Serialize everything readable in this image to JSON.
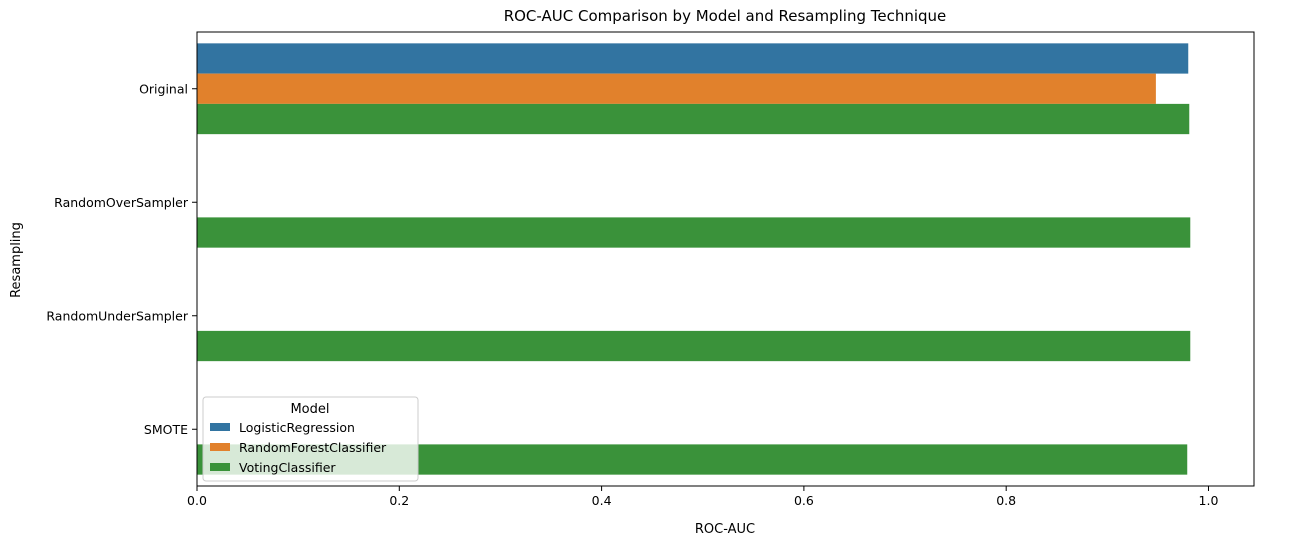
{
  "chart_data": {
    "type": "bar",
    "orientation": "horizontal",
    "title": "ROC-AUC Comparison by Model and Resampling Technique",
    "xlabel": "ROC-AUC",
    "ylabel": "Resampling",
    "xlim": [
      0,
      1.045
    ],
    "xticks": [
      "0.0",
      "0.2",
      "0.4",
      "0.6",
      "0.8",
      "1.0"
    ],
    "xtick_values": [
      0,
      0.2,
      0.4,
      0.6,
      0.8,
      1.0
    ],
    "categories": [
      "Original",
      "RandomOverSampler",
      "RandomUnderSampler",
      "SMOTE"
    ],
    "grid": false,
    "legend": {
      "title": "Model",
      "placement": "lower-left"
    },
    "series": [
      {
        "name": "LogisticRegression",
        "color": "#3274a1",
        "values": [
          0.98,
          null,
          null,
          null
        ]
      },
      {
        "name": "RandomForestClassifier",
        "color": "#e1812c",
        "values": [
          0.948,
          null,
          null,
          null
        ]
      },
      {
        "name": "VotingClassifier",
        "color": "#3a923a",
        "values": [
          0.981,
          0.982,
          0.982,
          0.979
        ]
      }
    ]
  }
}
